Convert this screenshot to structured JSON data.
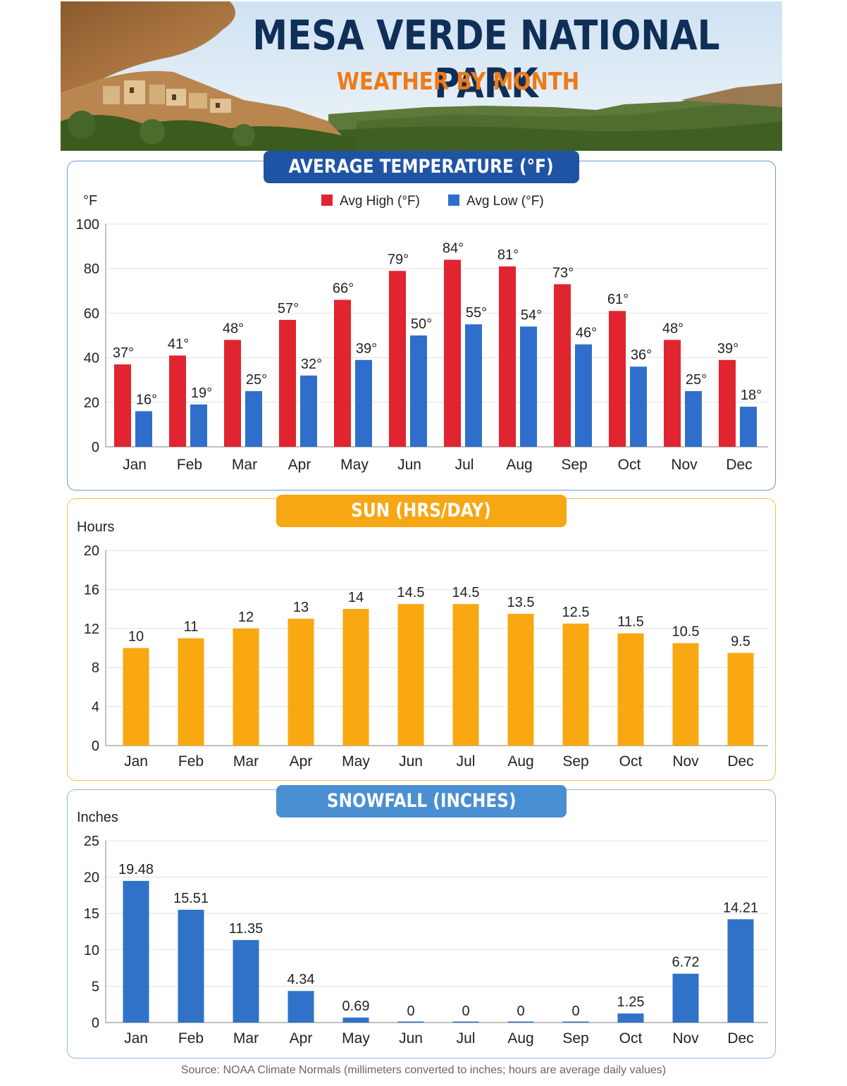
{
  "header": {
    "title": "MESA VERDE NATIONAL PARK",
    "subtitle": "WEATHER BY MONTH"
  },
  "colors": {
    "title": "#0f2f57",
    "subtitle": "#ef7a16",
    "avg_high": "#e02530",
    "avg_low": "#2f6fcb",
    "sun": "#f9a811",
    "snow": "#2f72c8",
    "temp_header": "#1f54a5",
    "sun_header": "#f7a614",
    "snow_header": "#4a8fd1"
  },
  "chart_data": [
    {
      "type": "bar",
      "title": "AVERAGE TEMPERATURE (°F)",
      "ylabel": "°F",
      "categories": [
        "Jan",
        "Feb",
        "Mar",
        "Apr",
        "May",
        "Jun",
        "Jul",
        "Aug",
        "Sep",
        "Oct",
        "Nov",
        "Dec"
      ],
      "series": [
        {
          "name": "Avg High (°F)",
          "values": [
            37,
            41,
            48,
            57,
            66,
            79,
            84,
            81,
            73,
            61,
            48,
            39
          ],
          "labels": [
            "37°",
            "41°",
            "48°",
            "57°",
            "66°",
            "79°",
            "84°",
            "81°",
            "73°",
            "61°",
            "48°",
            "39°"
          ]
        },
        {
          "name": "Avg Low (°F)",
          "values": [
            16,
            19,
            25,
            32,
            39,
            50,
            55,
            54,
            46,
            36,
            25,
            18
          ],
          "labels": [
            "16°",
            "19°",
            "25°",
            "32°",
            "39°",
            "50°",
            "55°",
            "54°",
            "46°",
            "36°",
            "25°",
            "18°"
          ]
        }
      ],
      "ylim": [
        0,
        100
      ],
      "yticks": [
        0,
        20,
        40,
        60,
        80,
        100
      ],
      "legend": "top-center",
      "grid": true
    },
    {
      "type": "bar",
      "title": "SUN (HRS/DAY)",
      "ylabel": "Hours",
      "categories": [
        "Jan",
        "Feb",
        "Mar",
        "Apr",
        "May",
        "Jun",
        "Jul",
        "Aug",
        "Sep",
        "Oct",
        "Nov",
        "Dec"
      ],
      "values": [
        10,
        11,
        12,
        13,
        14,
        14.5,
        14.5,
        13.5,
        12.5,
        11.5,
        10.5,
        9.5
      ],
      "labels": [
        "10",
        "11",
        "12",
        "13",
        "14",
        "14.5",
        "14.5",
        "13.5",
        "12.5",
        "11.5",
        "10.5",
        "9.5"
      ],
      "ylim": [
        0,
        20
      ],
      "yticks": [
        0,
        4,
        8,
        12,
        16,
        20
      ],
      "grid": true
    },
    {
      "type": "bar",
      "title": "SNOWFALL (INCHES)",
      "ylabel": "Inches",
      "categories": [
        "Jan",
        "Feb",
        "Mar",
        "Apr",
        "May",
        "Jun",
        "Jul",
        "Aug",
        "Sep",
        "Oct",
        "Nov",
        "Dec"
      ],
      "values": [
        19.48,
        15.51,
        11.35,
        4.34,
        0.69,
        0,
        0,
        0,
        0,
        1.25,
        6.72,
        14.21
      ],
      "labels": [
        "19.48",
        "15.51",
        "11.35",
        "4.34",
        "0.69",
        "0",
        "0",
        "0",
        "0",
        "1.25",
        "6.72",
        "14.21"
      ],
      "ylim": [
        0,
        25
      ],
      "yticks": [
        0,
        5,
        10,
        15,
        20,
        25
      ],
      "grid": true
    }
  ],
  "footer": {
    "source": "Source: NOAA Climate Normals (millimeters converted to inches; hours are average daily values)"
  }
}
